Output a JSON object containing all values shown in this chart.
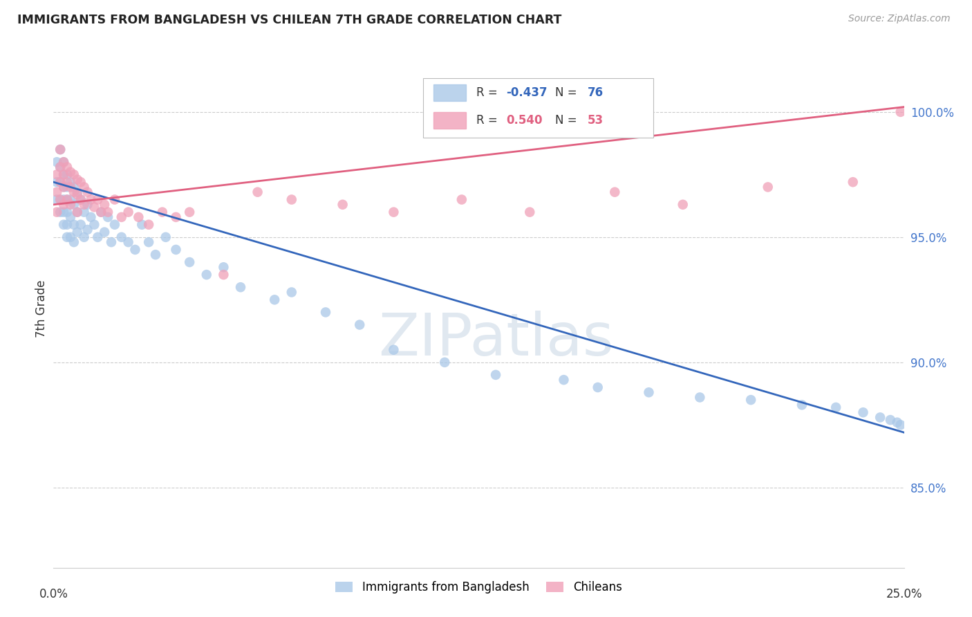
{
  "title": "IMMIGRANTS FROM BANGLADESH VS CHILEAN 7TH GRADE CORRELATION CHART",
  "source": "Source: ZipAtlas.com",
  "ylabel": "7th Grade",
  "y_ticks": [
    0.85,
    0.9,
    0.95,
    1.0
  ],
  "y_tick_labels": [
    "85.0%",
    "90.0%",
    "95.0%",
    "100.0%"
  ],
  "x_range": [
    0.0,
    0.25
  ],
  "y_range": [
    0.818,
    1.025
  ],
  "legend_r_bangladesh": "-0.437",
  "legend_n_bangladesh": "76",
  "legend_r_chilean": "0.540",
  "legend_n_chilean": "53",
  "bangladesh_color": "#aac8e8",
  "chilean_color": "#f0a0b8",
  "trendline_bangladesh_color": "#3366bb",
  "trendline_chilean_color": "#e06080",
  "watermark": "ZIPatlas",
  "background_color": "#ffffff",
  "grid_color": "#cccccc",
  "bangladesh_points_x": [
    0.001,
    0.001,
    0.001,
    0.002,
    0.002,
    0.002,
    0.002,
    0.002,
    0.003,
    0.003,
    0.003,
    0.003,
    0.003,
    0.003,
    0.004,
    0.004,
    0.004,
    0.004,
    0.004,
    0.004,
    0.005,
    0.005,
    0.005,
    0.005,
    0.006,
    0.006,
    0.006,
    0.006,
    0.007,
    0.007,
    0.007,
    0.008,
    0.008,
    0.009,
    0.009,
    0.01,
    0.01,
    0.011,
    0.012,
    0.013,
    0.014,
    0.015,
    0.016,
    0.017,
    0.018,
    0.02,
    0.022,
    0.024,
    0.026,
    0.028,
    0.03,
    0.033,
    0.036,
    0.04,
    0.045,
    0.05,
    0.055,
    0.065,
    0.07,
    0.08,
    0.09,
    0.1,
    0.115,
    0.13,
    0.15,
    0.16,
    0.175,
    0.19,
    0.205,
    0.22,
    0.23,
    0.238,
    0.243,
    0.246,
    0.248,
    0.249
  ],
  "bangladesh_points_y": [
    0.98,
    0.972,
    0.965,
    0.985,
    0.978,
    0.972,
    0.965,
    0.96,
    0.98,
    0.975,
    0.97,
    0.965,
    0.96,
    0.955,
    0.975,
    0.97,
    0.965,
    0.96,
    0.955,
    0.95,
    0.972,
    0.965,
    0.958,
    0.95,
    0.97,
    0.963,
    0.955,
    0.948,
    0.968,
    0.96,
    0.952,
    0.965,
    0.955,
    0.96,
    0.95,
    0.963,
    0.953,
    0.958,
    0.955,
    0.95,
    0.96,
    0.952,
    0.958,
    0.948,
    0.955,
    0.95,
    0.948,
    0.945,
    0.955,
    0.948,
    0.943,
    0.95,
    0.945,
    0.94,
    0.935,
    0.938,
    0.93,
    0.925,
    0.928,
    0.92,
    0.915,
    0.905,
    0.9,
    0.895,
    0.893,
    0.89,
    0.888,
    0.886,
    0.885,
    0.883,
    0.882,
    0.88,
    0.878,
    0.877,
    0.876,
    0.875
  ],
  "chilean_points_x": [
    0.001,
    0.001,
    0.001,
    0.002,
    0.002,
    0.002,
    0.002,
    0.003,
    0.003,
    0.003,
    0.003,
    0.004,
    0.004,
    0.004,
    0.005,
    0.005,
    0.005,
    0.006,
    0.006,
    0.007,
    0.007,
    0.007,
    0.008,
    0.008,
    0.009,
    0.009,
    0.01,
    0.011,
    0.012,
    0.013,
    0.014,
    0.015,
    0.016,
    0.018,
    0.02,
    0.022,
    0.025,
    0.028,
    0.032,
    0.036,
    0.04,
    0.05,
    0.06,
    0.07,
    0.085,
    0.1,
    0.12,
    0.14,
    0.165,
    0.185,
    0.21,
    0.235,
    0.249
  ],
  "chilean_points_y": [
    0.975,
    0.968,
    0.96,
    0.985,
    0.978,
    0.972,
    0.965,
    0.98,
    0.975,
    0.97,
    0.963,
    0.978,
    0.972,
    0.965,
    0.976,
    0.97,
    0.963,
    0.975,
    0.968,
    0.973,
    0.967,
    0.96,
    0.972,
    0.965,
    0.97,
    0.963,
    0.968,
    0.965,
    0.962,
    0.965,
    0.96,
    0.963,
    0.96,
    0.965,
    0.958,
    0.96,
    0.958,
    0.955,
    0.96,
    0.958,
    0.96,
    0.935,
    0.968,
    0.965,
    0.963,
    0.96,
    0.965,
    0.96,
    0.968,
    0.963,
    0.97,
    0.972,
    1.0
  ],
  "trendline_b_x0": 0.0,
  "trendline_b_y0": 0.972,
  "trendline_b_x1": 0.25,
  "trendline_b_y1": 0.872,
  "trendline_c_x0": 0.0,
  "trendline_c_y0": 0.963,
  "trendline_c_x1": 0.25,
  "trendline_c_y1": 1.002
}
